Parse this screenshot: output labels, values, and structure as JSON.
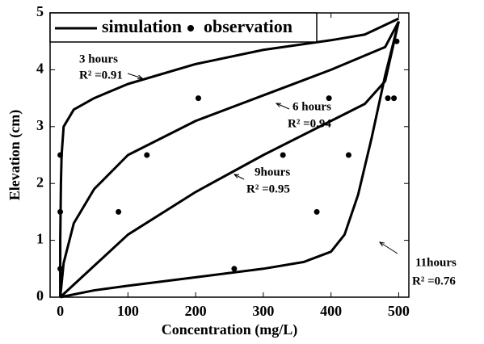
{
  "chart_data": {
    "type": "line",
    "xlabel": "Concentration (mg/L)",
    "ylabel": "Elevation (cm)",
    "xlim": [
      -15,
      515
    ],
    "ylim": [
      0,
      5
    ],
    "xticks": [
      0,
      100,
      200,
      300,
      400,
      500
    ],
    "yticks": [
      0,
      1,
      2,
      3,
      4,
      5
    ],
    "legend": "upper left",
    "series": [
      {
        "name": "simulation",
        "color": "#000000",
        "type": "line",
        "lines": [
          {
            "x": [
              0,
              0,
              1,
              2,
              5,
              20,
              50,
              100,
              200,
              300,
              400,
              450,
              500
            ],
            "values": [
              0,
              1,
              2,
              2.5,
              3,
              3.3,
              3.5,
              3.75,
              4.1,
              4.35,
              4.52,
              4.62,
              4.9
            ]
          },
          {
            "x": [
              0,
              5,
              20,
              50,
              100,
              200,
              300,
              400,
              480,
              500
            ],
            "values": [
              0,
              0.6,
              1.3,
              1.9,
              2.5,
              3.1,
              3.55,
              4.0,
              4.4,
              4.85
            ]
          },
          {
            "x": [
              0,
              50,
              100,
              200,
              300,
              400,
              450,
              480,
              500
            ],
            "values": [
              0,
              0.55,
              1.1,
              1.85,
              2.5,
              3.1,
              3.4,
              3.8,
              4.85
            ]
          },
          {
            "x": [
              0,
              50,
              100,
              200,
              300,
              360,
              400,
              420,
              440,
              460,
              480,
              500
            ],
            "values": [
              0,
              0.12,
              0.2,
              0.35,
              0.5,
              0.62,
              0.8,
              1.1,
              1.8,
              2.8,
              3.9,
              4.85
            ]
          }
        ]
      },
      {
        "name": "observation",
        "color": "#000000",
        "type": "scatter",
        "x": [
          0,
          0,
          0,
          86,
          128,
          204,
          257,
          329,
          379,
          397,
          426,
          484,
          493,
          497
        ],
        "values": [
          0.5,
          1.5,
          2.5,
          1.5,
          2.5,
          3.5,
          0.5,
          2.5,
          1.5,
          3.5,
          2.5,
          3.5,
          3.5,
          4.5
        ]
      }
    ],
    "annotations": [
      {
        "text": "3 hours",
        "r2": "R² =0.91"
      },
      {
        "text": "6 hours",
        "r2": "R² =0.94"
      },
      {
        "text": "9hours",
        "r2": "R² =0.95"
      },
      {
        "text": "11hours",
        "r2": "R² =0.76"
      }
    ]
  }
}
